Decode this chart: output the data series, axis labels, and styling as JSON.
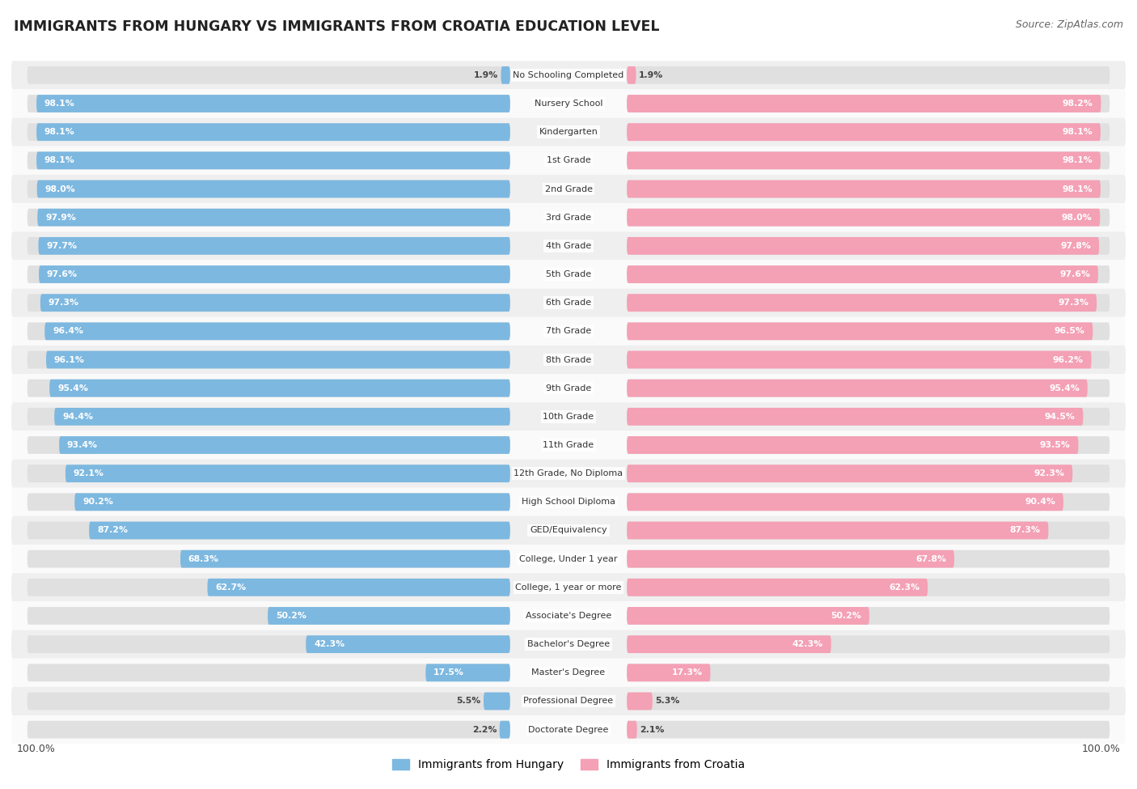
{
  "title": "IMMIGRANTS FROM HUNGARY VS IMMIGRANTS FROM CROATIA EDUCATION LEVEL",
  "source": "Source: ZipAtlas.com",
  "categories": [
    "No Schooling Completed",
    "Nursery School",
    "Kindergarten",
    "1st Grade",
    "2nd Grade",
    "3rd Grade",
    "4th Grade",
    "5th Grade",
    "6th Grade",
    "7th Grade",
    "8th Grade",
    "9th Grade",
    "10th Grade",
    "11th Grade",
    "12th Grade, No Diploma",
    "High School Diploma",
    "GED/Equivalency",
    "College, Under 1 year",
    "College, 1 year or more",
    "Associate's Degree",
    "Bachelor's Degree",
    "Master's Degree",
    "Professional Degree",
    "Doctorate Degree"
  ],
  "hungary_values": [
    1.9,
    98.1,
    98.1,
    98.1,
    98.0,
    97.9,
    97.7,
    97.6,
    97.3,
    96.4,
    96.1,
    95.4,
    94.4,
    93.4,
    92.1,
    90.2,
    87.2,
    68.3,
    62.7,
    50.2,
    42.3,
    17.5,
    5.5,
    2.2
  ],
  "croatia_values": [
    1.9,
    98.2,
    98.1,
    98.1,
    98.1,
    98.0,
    97.8,
    97.6,
    97.3,
    96.5,
    96.2,
    95.4,
    94.5,
    93.5,
    92.3,
    90.4,
    87.3,
    67.8,
    62.3,
    50.2,
    42.3,
    17.3,
    5.3,
    2.1
  ],
  "hungary_color": "#7db8e0",
  "croatia_color": "#f4a0b5",
  "bar_bg_color": "#e0e0e0",
  "row_bg_even": "#efefef",
  "row_bg_odd": "#fafafa",
  "label_color_inside": "#ffffff",
  "label_color_outside": "#555555",
  "legend_hungary": "Immigrants from Hungary",
  "legend_croatia": "Immigrants from Croatia",
  "axis_label_left": "100.0%",
  "axis_label_right": "100.0%"
}
